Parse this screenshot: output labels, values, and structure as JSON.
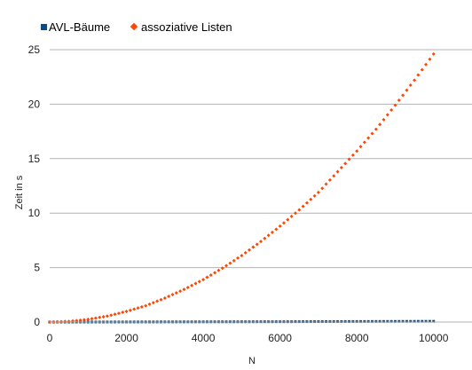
{
  "chart_data": {
    "type": "scatter",
    "title": "",
    "xlabel": "N",
    "ylabel": "Zeit in s",
    "xlim": [
      0,
      11000
    ],
    "ylim": [
      0,
      25
    ],
    "x_ticks": [
      "0",
      "2000",
      "4000",
      "6000",
      "8000",
      "10000"
    ],
    "y_ticks": [
      "0",
      "5",
      "10",
      "15",
      "20",
      "25"
    ],
    "grid": "horizontal",
    "legend_position": "top-left",
    "series": [
      {
        "name": "AVL-Bäume",
        "color": "#0a4a8a",
        "marker": "square",
        "x": [
          0,
          1000,
          2000,
          3000,
          4000,
          5000,
          6000,
          7000,
          8000,
          9000,
          10000
        ],
        "y": [
          0,
          0.005,
          0.01,
          0.015,
          0.02,
          0.025,
          0.03,
          0.04,
          0.05,
          0.06,
          0.07
        ]
      },
      {
        "name": "assoziative Listen",
        "color": "#ff4500",
        "marker": "diamond",
        "x": [
          0,
          500,
          1000,
          1500,
          2000,
          2500,
          3000,
          3500,
          4000,
          4500,
          5000,
          5500,
          6000,
          6500,
          7000,
          7500,
          8000,
          8500,
          9000,
          9500,
          10000
        ],
        "y": [
          0,
          0.06,
          0.25,
          0.55,
          0.98,
          1.5,
          2.2,
          3.0,
          3.9,
          4.95,
          6.1,
          7.4,
          8.8,
          10.3,
          11.9,
          13.8,
          15.7,
          17.7,
          19.9,
          22.2,
          24.6
        ]
      }
    ]
  }
}
